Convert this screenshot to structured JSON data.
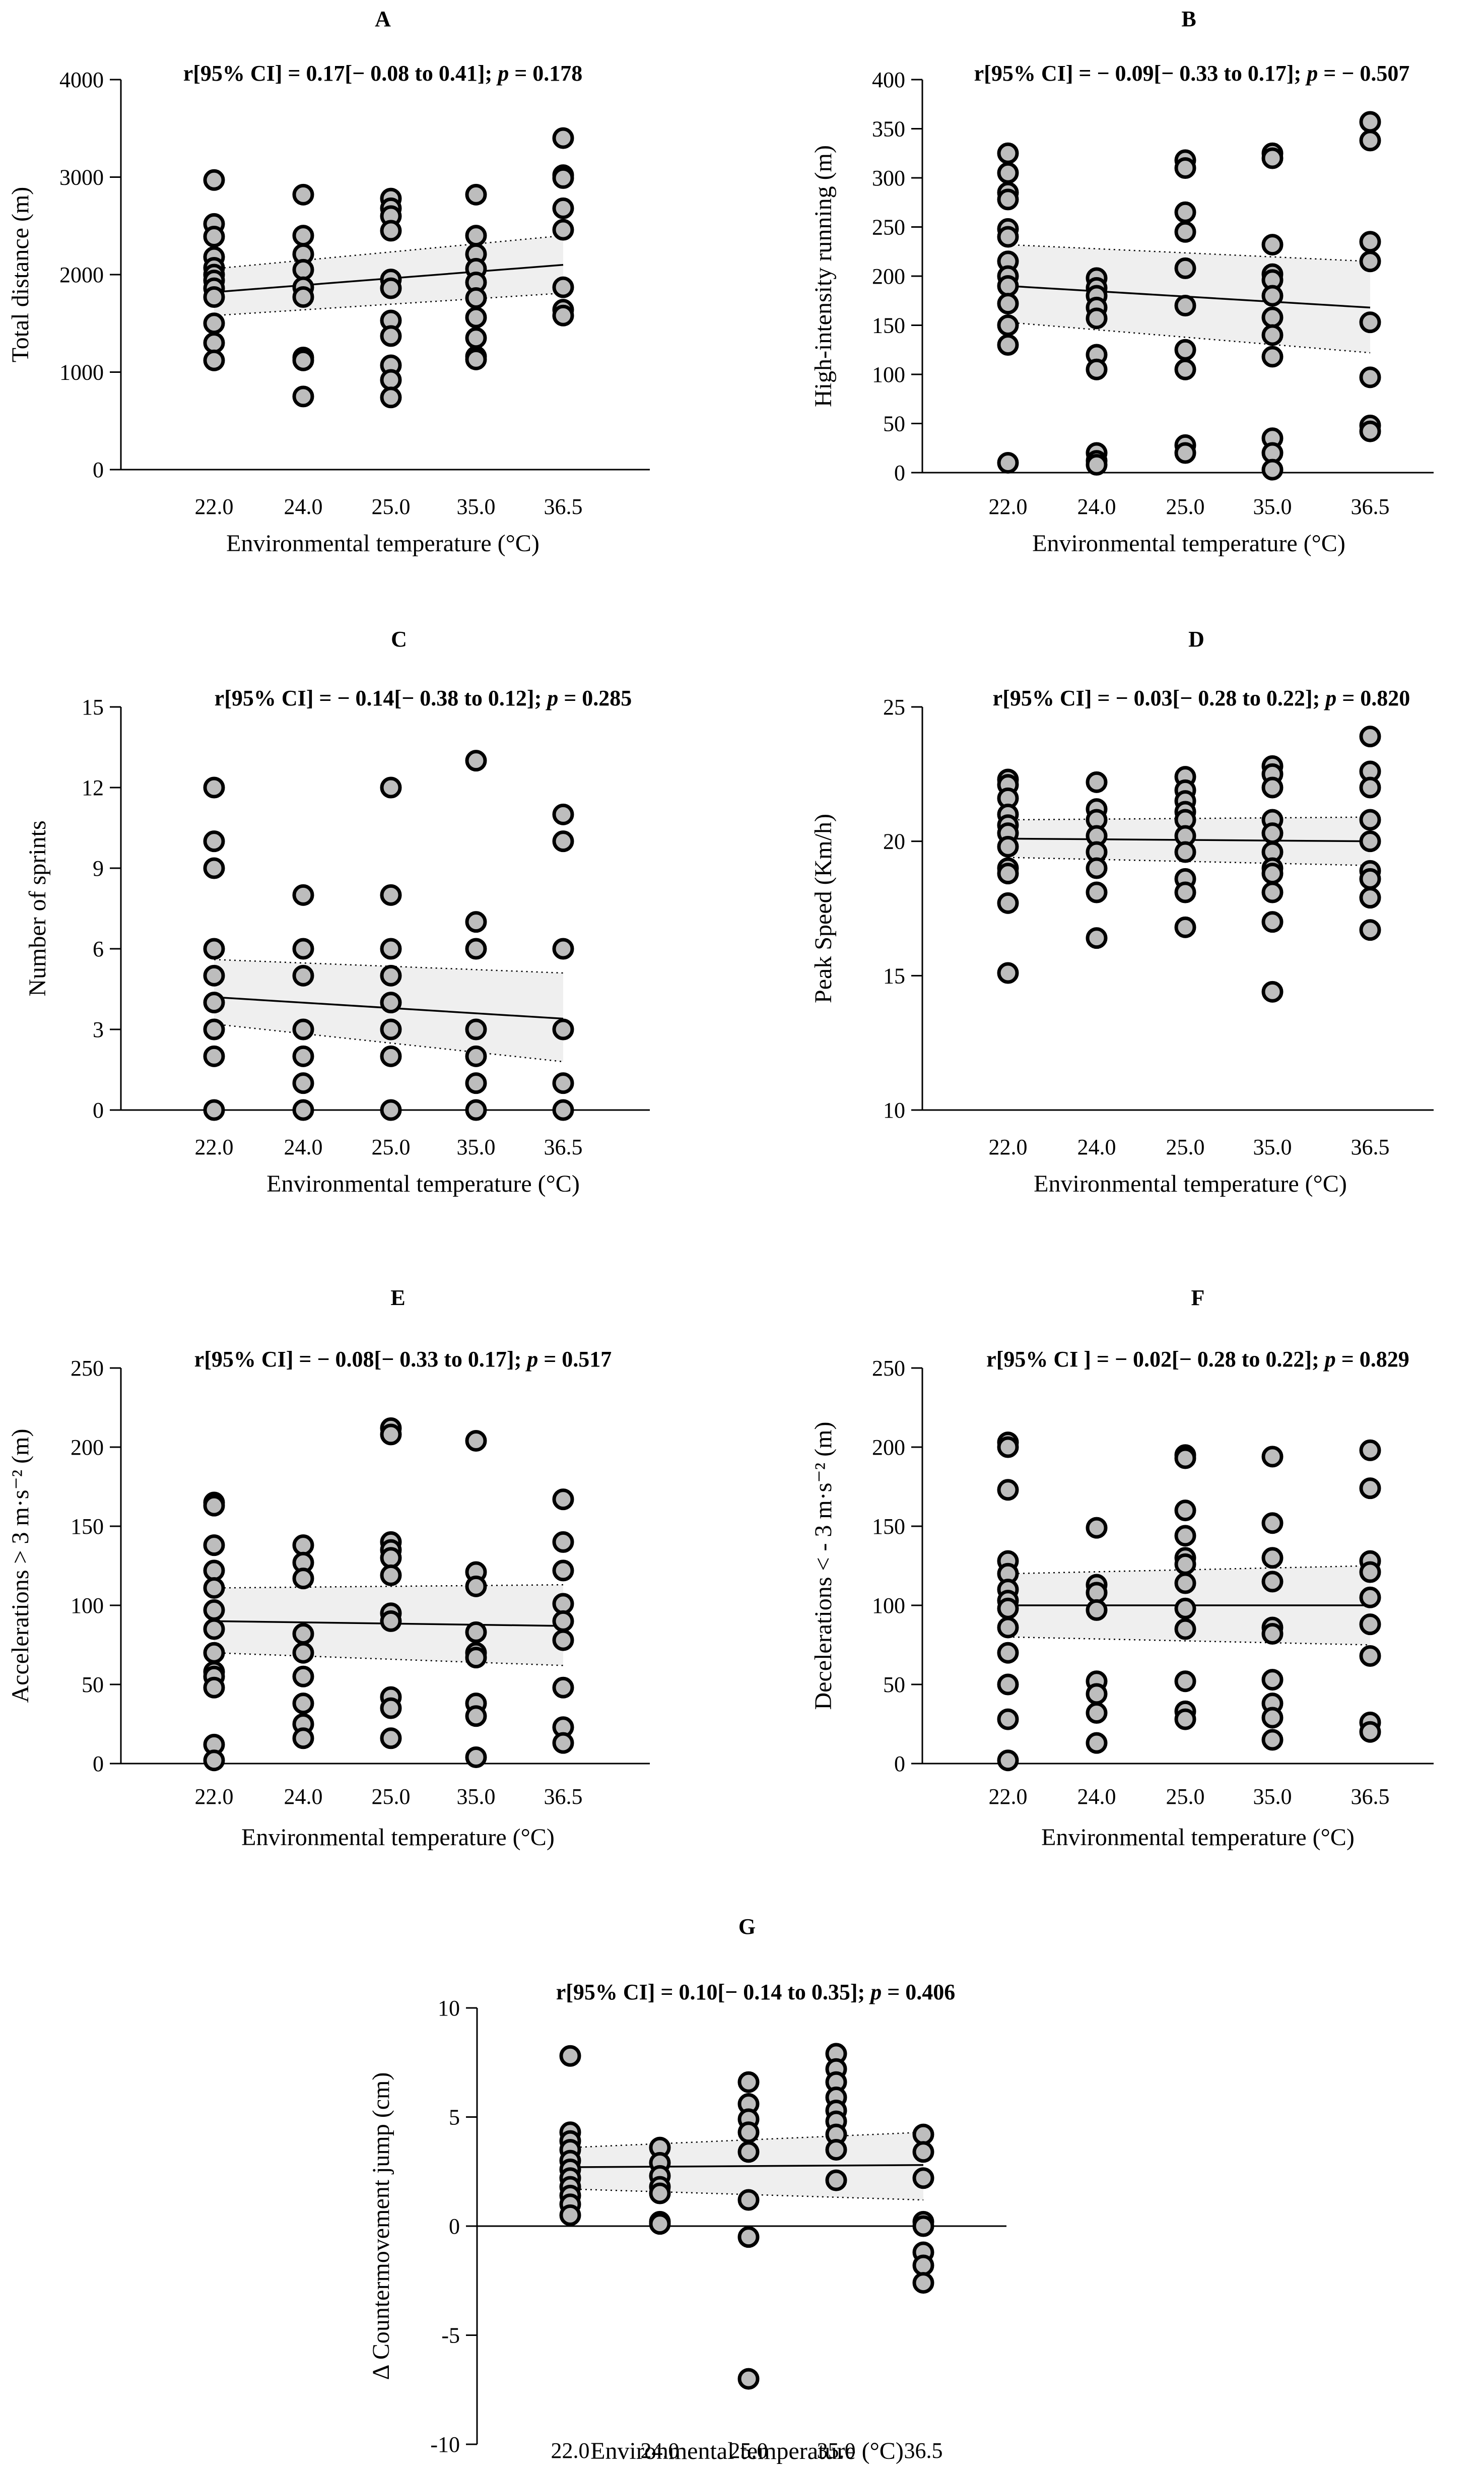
{
  "figure": {
    "panels": [
      "A",
      "B",
      "C",
      "D",
      "E",
      "F",
      "G"
    ]
  },
  "chart_data": [
    {
      "panel": "A",
      "type": "scatter",
      "stat": "r[95% CI] = 0.17[− 0.08 to 0.41]; p = 0.178",
      "ylabel": "Total distance (m)",
      "xlabel": "Environmental temperature (°C)",
      "categories": [
        "22.0",
        "24.0",
        "25.0",
        "35.0",
        "36.5"
      ],
      "ylim": [
        0,
        4000
      ],
      "yticks": [
        0,
        1000,
        2000,
        3000,
        4000
      ],
      "yticklabels": [
        "0",
        "1000",
        "2000",
        "3000",
        "4000"
      ],
      "fit": [
        1820,
        2100
      ],
      "ci_low": [
        1580,
        1810
      ],
      "ci_high": [
        2060,
        2400
      ],
      "points": [
        [
          2970,
          2520,
          2390,
          2180,
          2070,
          2000,
          1940,
          1860,
          1770,
          1500,
          1300,
          1120
        ],
        [
          2820,
          2400,
          2210,
          2050,
          1870,
          1770,
          1150,
          1120,
          750
        ],
        [
          2780,
          2680,
          2600,
          2450,
          1950,
          1860,
          1530,
          1370,
          1070,
          920,
          740
        ],
        [
          2820,
          2400,
          2210,
          2060,
          1920,
          1760,
          1560,
          1350,
          1160,
          1130
        ],
        [
          3400,
          3020,
          2990,
          2680,
          2460,
          1870,
          1640,
          1580
        ]
      ]
    },
    {
      "panel": "B",
      "type": "scatter",
      "stat": "r[95% CI] = − 0.09[− 0.33 to 0.17]; p = − 0.507",
      "ylabel": "High-intensity running (m)",
      "xlabel": "Environmental temperature (°C)",
      "categories": [
        "22.0",
        "24.0",
        "25.0",
        "35.0",
        "36.5"
      ],
      "ylim": [
        0,
        400
      ],
      "yticks": [
        0,
        50,
        100,
        150,
        200,
        250,
        300,
        350,
        400
      ],
      "yticklabels": [
        "0",
        "50",
        "100",
        "150",
        "200",
        "250",
        "300",
        "350",
        "400"
      ],
      "fit": [
        190,
        168
      ],
      "ci_low": [
        153,
        122
      ],
      "ci_high": [
        232,
        215
      ],
      "points": [
        [
          325,
          305,
          285,
          278,
          248,
          240,
          215,
          200,
          190,
          172,
          150,
          130,
          10
        ],
        [
          198,
          188,
          180,
          168,
          157,
          120,
          105,
          20,
          12,
          8
        ],
        [
          318,
          310,
          265,
          245,
          208,
          170,
          125,
          105,
          28,
          20
        ],
        [
          325,
          320,
          232,
          202,
          196,
          180,
          158,
          140,
          118,
          35,
          20,
          3
        ],
        [
          357,
          338,
          235,
          215,
          153,
          97,
          48,
          42
        ]
      ]
    },
    {
      "panel": "C",
      "type": "scatter",
      "stat": "r[95% CI] = − 0.14[− 0.38 to 0.12]; p = 0.285",
      "ylabel": "Number of sprints",
      "xlabel": "Environmental temperature (°C)",
      "categories": [
        "22.0",
        "24.0",
        "25.0",
        "35.0",
        "36.5"
      ],
      "ylim": [
        0,
        15
      ],
      "yticks": [
        0,
        3,
        6,
        9,
        12,
        15
      ],
      "yticklabels": [
        "0",
        "3",
        "6",
        "9",
        "12",
        "15"
      ],
      "fit": [
        4.2,
        3.4
      ],
      "ci_low": [
        3.2,
        1.8
      ],
      "ci_high": [
        5.6,
        5.1
      ],
      "points": [
        [
          12,
          10,
          9,
          6,
          5,
          4,
          3,
          2,
          0
        ],
        [
          8,
          6,
          5,
          3,
          2,
          1,
          0
        ],
        [
          12,
          8,
          6,
          5,
          4,
          3,
          2,
          0
        ],
        [
          13,
          7,
          6,
          3,
          2,
          1,
          0
        ],
        [
          11,
          10,
          6,
          3,
          1,
          0
        ]
      ]
    },
    {
      "panel": "D",
      "type": "scatter",
      "stat": "r[95% CI] = − 0.03[− 0.28 to 0.22]; p = 0.820",
      "ylabel": "Peak Speed (Km/h)",
      "xlabel": "Environmental temperature (°C)",
      "categories": [
        "22.0",
        "24.0",
        "25.0",
        "35.0",
        "36.5"
      ],
      "ylim": [
        10,
        25
      ],
      "yticks": [
        10,
        15,
        20,
        25
      ],
      "yticklabels": [
        "10",
        "15",
        "20",
        "25"
      ],
      "fit": [
        20.1,
        20.0
      ],
      "ci_low": [
        19.4,
        19.1
      ],
      "ci_high": [
        20.8,
        20.9
      ],
      "points": [
        [
          22.3,
          22.1,
          21.6,
          21.0,
          20.6,
          20.3,
          19.8,
          19.0,
          18.8,
          17.7,
          15.1
        ],
        [
          22.2,
          21.2,
          20.8,
          20.2,
          19.6,
          19.0,
          18.1,
          16.4
        ],
        [
          22.4,
          21.9,
          21.5,
          21.1,
          20.8,
          20.2,
          19.6,
          18.6,
          18.1,
          16.8
        ],
        [
          22.8,
          22.5,
          22.0,
          20.8,
          20.3,
          19.6,
          19.0,
          18.8,
          18.1,
          17.0,
          14.4
        ],
        [
          23.9,
          22.6,
          22.0,
          20.8,
          20.0,
          18.9,
          18.6,
          17.9,
          16.7
        ]
      ]
    },
    {
      "panel": "E",
      "type": "scatter",
      "stat": "r[95% CI] = − 0.08[− 0.33 to 0.17]; p = 0.517",
      "ylabel": "Accelerations > 3 m·s⁻² (m)",
      "xlabel": "Environmental temperature (°C)",
      "categories": [
        "22.0",
        "24.0",
        "25.0",
        "35.0",
        "36.5"
      ],
      "ylim": [
        0,
        250
      ],
      "yticks": [
        0,
        50,
        100,
        150,
        200,
        250
      ],
      "yticklabels": [
        "0",
        "50",
        "100",
        "150",
        "200",
        "250"
      ],
      "fit": [
        90,
        87
      ],
      "ci_low": [
        70,
        62
      ],
      "ci_high": [
        111,
        113
      ],
      "points": [
        [
          165,
          163,
          138,
          122,
          111,
          97,
          85,
          70,
          58,
          55,
          48,
          12,
          2
        ],
        [
          138,
          127,
          117,
          82,
          70,
          55,
          38,
          25,
          16
        ],
        [
          212,
          208,
          140,
          135,
          130,
          119,
          95,
          90,
          42,
          35,
          16
        ],
        [
          204,
          121,
          112,
          83,
          70,
          67,
          38,
          30,
          4
        ],
        [
          167,
          140,
          122,
          101,
          90,
          78,
          48,
          23,
          13
        ]
      ]
    },
    {
      "panel": "F",
      "type": "scatter",
      "stat": "r[95% CI ] = − 0.02[− 0.28 to 0.22]; p = 0.829",
      "ylabel": "Decelerations < - 3 m·s⁻² (m)",
      "xlabel": "Environmental temperature (°C)",
      "categories": [
        "22.0",
        "24.0",
        "25.0",
        "35.0",
        "36.5"
      ],
      "ylim": [
        0,
        250
      ],
      "yticks": [
        0,
        50,
        100,
        150,
        200,
        250
      ],
      "yticklabels": [
        "0",
        "50",
        "100",
        "150",
        "200",
        "250"
      ],
      "fit": [
        100,
        100
      ],
      "ci_low": [
        80,
        75
      ],
      "ci_high": [
        120,
        125
      ],
      "points": [
        [
          203,
          200,
          173,
          128,
          120,
          110,
          103,
          98,
          86,
          70,
          50,
          28,
          2
        ],
        [
          149,
          113,
          108,
          97,
          52,
          44,
          32,
          13
        ],
        [
          195,
          193,
          160,
          144,
          130,
          126,
          114,
          98,
          85,
          52,
          33,
          28
        ],
        [
          194,
          152,
          130,
          115,
          86,
          82,
          53,
          38,
          29,
          15
        ],
        [
          198,
          174,
          128,
          121,
          105,
          88,
          68,
          26,
          20
        ]
      ]
    },
    {
      "panel": "G",
      "type": "scatter",
      "stat": "r[95% CI] = 0.10[− 0.14 to 0.35]; p = 0.406",
      "ylabel": "Δ Countermovement jump  (cm)",
      "xlabel": "Environmental temperature (°C)",
      "categories": [
        "22.0",
        "24.0",
        "25.0",
        "35.0",
        "36.5"
      ],
      "ylim": [
        -10,
        10
      ],
      "yticks": [
        -10,
        -5,
        0,
        5,
        10
      ],
      "yticklabels": [
        "-10",
        "-5",
        "0",
        "5",
        "10"
      ],
      "fit": [
        2.7,
        2.8
      ],
      "ci_low": [
        1.7,
        1.2
      ],
      "ci_high": [
        3.6,
        4.3
      ],
      "points": [
        [
          7.8,
          4.3,
          3.9,
          3.5,
          3.0,
          2.6,
          2.2,
          1.8,
          1.4,
          1.0,
          0.5
        ],
        [
          3.6,
          2.9,
          2.3,
          1.8,
          1.5,
          0.2,
          0.1
        ],
        [
          6.6,
          5.6,
          4.9,
          4.3,
          3.4,
          1.2,
          -0.5,
          -7.0
        ],
        [
          7.9,
          7.2,
          6.6,
          5.9,
          5.3,
          4.8,
          4.2,
          3.5,
          2.1
        ],
        [
          4.2,
          3.4,
          2.2,
          0.2,
          0.0,
          -1.2,
          -1.8,
          -2.6
        ]
      ]
    }
  ]
}
